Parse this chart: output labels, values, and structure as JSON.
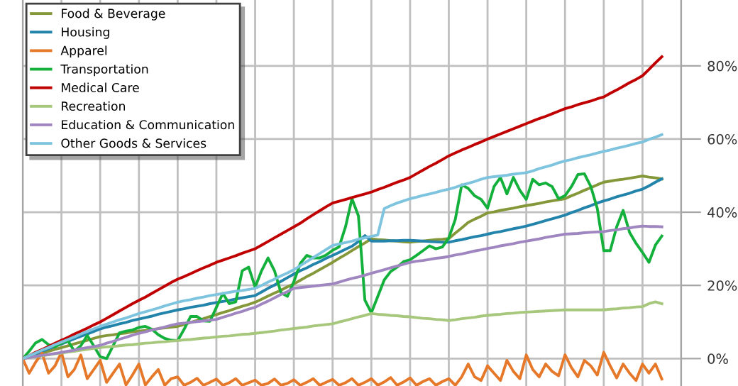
{
  "chart_data": {
    "type": "line",
    "categories": [
      null,
      null,
      null,
      null,
      null,
      null,
      null,
      null,
      null,
      null,
      null,
      null,
      null,
      null,
      null,
      null,
      null,
      null,
      null,
      null,
      null,
      null,
      null,
      null,
      null,
      null,
      null,
      null,
      null,
      null,
      null,
      null,
      null,
      null,
      null,
      null,
      null,
      null,
      null,
      null,
      null,
      null,
      null,
      null,
      null,
      null,
      null,
      null,
      null,
      null,
      null,
      null,
      null,
      null,
      null,
      null,
      null,
      null,
      null,
      null,
      null,
      null,
      null,
      null,
      null,
      null,
      null,
      null,
      null,
      null,
      null,
      null,
      null,
      null,
      null,
      null,
      null,
      null,
      null,
      null,
      null,
      null,
      null,
      null,
      null,
      null,
      null,
      null,
      null,
      null,
      null,
      null,
      null,
      null,
      null,
      null,
      null,
      null,
      null,
      null,
      null,
      null,
      null
    ],
    "series": [
      {
        "name": "Food & Beverage",
        "color": "#84983a",
        "values": [
          0,
          0.5,
          1,
          1.5,
          2,
          2.5,
          3,
          3.5,
          4,
          4.5,
          5,
          5.5,
          6,
          6.3,
          6.5,
          6.8,
          7,
          7.3,
          7.5,
          7.7,
          7.9,
          8.2,
          8.4,
          8.6,
          8.8,
          9.3,
          9.9,
          10.4,
          10.9,
          11.5,
          12,
          12.6,
          13.1,
          13.7,
          14.3,
          14.8,
          15.4,
          16.2,
          17.1,
          17.9,
          18.7,
          19.6,
          20.4,
          21.4,
          22.4,
          23.3,
          24.3,
          25.3,
          26.3,
          27.4,
          28.4,
          29.5,
          30.6,
          31.6,
          32.7,
          32.5,
          32.4,
          32.2,
          32.1,
          31.9,
          31.8,
          32,
          32.1,
          32.3,
          32.5,
          32.6,
          32.8,
          34.3,
          35.7,
          37.2,
          38.1,
          38.9,
          39.8,
          40.1,
          40.5,
          40.8,
          41.1,
          41.5,
          41.8,
          42.1,
          42.4,
          42.8,
          43.1,
          43.4,
          43.7,
          44.5,
          45.2,
          46,
          46.7,
          47.5,
          48.2,
          48.5,
          48.8,
          49,
          49.3,
          49.6,
          49.9,
          49.6,
          49.4,
          49.1,
          null,
          null,
          null
        ]
      },
      {
        "name": "Housing",
        "color": "#2283ab",
        "values": [
          0,
          0.7,
          1.3,
          2,
          2.7,
          3.3,
          4,
          4.7,
          5.4,
          6.1,
          6.7,
          7.4,
          8.1,
          8.6,
          9,
          9.5,
          9.9,
          10.4,
          10.8,
          11.2,
          11.6,
          12.1,
          12.5,
          12.9,
          13.3,
          13.6,
          14,
          14.3,
          14.6,
          15,
          15.3,
          15.6,
          15.9,
          16.3,
          16.6,
          16.9,
          17.2,
          18.2,
          19.2,
          20.1,
          21.1,
          22.1,
          23.1,
          24,
          24.8,
          25.7,
          26.5,
          27.4,
          28.2,
          29,
          29.9,
          30.7,
          32,
          33.6,
          32.1,
          32.1,
          32.1,
          32.2,
          32.2,
          32.3,
          32.3,
          32.2,
          32.1,
          32,
          31.9,
          31.8,
          31.8,
          32.2,
          32.5,
          32.9,
          33.3,
          33.6,
          34,
          34.4,
          34.7,
          35.1,
          35.5,
          35.8,
          36.2,
          36.7,
          37.2,
          37.7,
          38.2,
          38.7,
          39.2,
          39.9,
          40.5,
          41.2,
          41.8,
          42.5,
          43.1,
          43.6,
          44.2,
          44.7,
          45.2,
          45.8,
          46.3,
          47.2,
          48.2,
          49.1,
          null,
          null,
          null
        ]
      },
      {
        "name": "Apparel",
        "color": "#e6782a",
        "values": [
          0,
          -4,
          -1,
          1.5,
          -4,
          -2,
          1.7,
          -5,
          -3,
          1,
          -5.5,
          -3,
          -0.5,
          -6.5,
          -4,
          -1.5,
          -7.2,
          -4.5,
          -1.5,
          -7.2,
          -5,
          -3,
          -7.3,
          -5.5,
          -5,
          -7.3,
          -6.5,
          -5.4,
          -7.3,
          -6.5,
          -5.6,
          -7.3,
          -6.6,
          -5.5,
          -7.3,
          -6.6,
          -5.9,
          -7.3,
          -6.8,
          -5.6,
          -7.3,
          -6.8,
          -5.8,
          -7.3,
          -6.5,
          -5.5,
          -7.3,
          -6.5,
          -5.7,
          -7.3,
          -6.6,
          -5.5,
          -7.3,
          -6.5,
          -5.5,
          -7.3,
          -6.4,
          -5.2,
          -7.3,
          -6.4,
          -5.3,
          -7.3,
          -6.3,
          -5.5,
          -7.3,
          -6.3,
          -5.5,
          -7.3,
          -5,
          -1.5,
          -5,
          -6,
          -2,
          -4,
          -6,
          -0.5,
          -3.5,
          -5.5,
          1,
          -3,
          -5,
          -1.5,
          -3.5,
          -4.7,
          1,
          -2.5,
          -5,
          -0.5,
          -2,
          -4.5,
          1.7,
          -2,
          -5.3,
          -1.5,
          -4,
          -6,
          -1.5,
          -4,
          -1.5,
          -5.6,
          null,
          null,
          null
        ]
      },
      {
        "name": "Transportation",
        "color": "#14b03c",
        "values": [
          0,
          2,
          4.3,
          5.2,
          3.8,
          3.2,
          4.2,
          4.9,
          2,
          3.5,
          6.3,
          3.5,
          0.5,
          0,
          3.5,
          7,
          7.5,
          7.8,
          8.5,
          8.8,
          8,
          6.5,
          5.5,
          5,
          4.9,
          8,
          11.5,
          11.5,
          10.3,
          10.2,
          14,
          17.8,
          15,
          15.5,
          24,
          25,
          19.5,
          24,
          27.5,
          24,
          18,
          17,
          21,
          26,
          28.2,
          27.5,
          27.5,
          28.3,
          29.6,
          30.5,
          36,
          43.7,
          39,
          16,
          12.5,
          17,
          21.5,
          23.8,
          25,
          26.5,
          27,
          28.2,
          29.5,
          30.8,
          30,
          30.5,
          33,
          38,
          47.5,
          46.5,
          44.5,
          43.5,
          41.1,
          47,
          49.5,
          45,
          49.5,
          46,
          43.5,
          49,
          47.5,
          48,
          47,
          43.7,
          44.5,
          47,
          50.3,
          50.5,
          47,
          41,
          29.5,
          29.5,
          36,
          40.5,
          34.5,
          31.5,
          29,
          26.3,
          31,
          33.5,
          null,
          null,
          null
        ]
      },
      {
        "name": "Medical Care",
        "color": "#c00000",
        "values": [
          0,
          0.8,
          1.7,
          2.5,
          3.3,
          4.2,
          5,
          5.8,
          6.7,
          7.5,
          8.3,
          9.2,
          10,
          11,
          12,
          13,
          14,
          15,
          15.9,
          16.8,
          17.8,
          18.8,
          19.8,
          20.8,
          21.7,
          22.4,
          23.2,
          24,
          24.8,
          25.5,
          26.3,
          26.9,
          27.5,
          28.1,
          28.8,
          29.4,
          30,
          31,
          32,
          33,
          34,
          35,
          36,
          37,
          38.2,
          39.3,
          40.4,
          41.5,
          42.5,
          43,
          43.5,
          44,
          44.5,
          45,
          45.5,
          46.2,
          46.8,
          47.5,
          48.2,
          48.8,
          49.5,
          50.5,
          51.5,
          52.5,
          53.4,
          54.4,
          55.4,
          56.2,
          57,
          57.7,
          58.5,
          59.2,
          60,
          60.7,
          61.4,
          62.1,
          62.8,
          63.5,
          64.2,
          64.9,
          65.6,
          66.2,
          66.9,
          67.6,
          68.3,
          68.8,
          69.4,
          69.9,
          70.4,
          71,
          71.5,
          72.5,
          73.4,
          74.4,
          75.4,
          76.3,
          77.3,
          79,
          80.8,
          82.5,
          null,
          null,
          null
        ]
      },
      {
        "name": "Recreation",
        "color": "#a6c77c",
        "values": [
          0,
          0.3,
          0.5,
          0.8,
          1,
          1.3,
          1.5,
          1.8,
          2,
          2.3,
          2.5,
          2.8,
          3,
          3.2,
          3.3,
          3.5,
          3.7,
          3.8,
          4,
          4.2,
          4.3,
          4.5,
          4.6,
          4.8,
          4.9,
          5.1,
          5.2,
          5.4,
          5.6,
          5.7,
          5.9,
          6.1,
          6.2,
          6.4,
          6.6,
          6.7,
          6.9,
          7.1,
          7.3,
          7.5,
          7.8,
          8,
          8.2,
          8.4,
          8.6,
          8.9,
          9.1,
          9.3,
          9.5,
          10,
          10.4,
          10.9,
          11.4,
          11.8,
          12.3,
          12.1,
          12,
          11.8,
          11.7,
          11.5,
          11.4,
          11.2,
          11,
          10.9,
          10.7,
          10.6,
          10.4,
          10.6,
          10.9,
          11.1,
          11.3,
          11.6,
          11.8,
          12,
          12.1,
          12.3,
          12.4,
          12.6,
          12.7,
          12.8,
          12.9,
          13,
          13.1,
          13.2,
          13.3,
          13.3,
          13.3,
          13.3,
          13.3,
          13.3,
          13.3,
          13.5,
          13.6,
          13.8,
          13.9,
          14.1,
          14.2,
          15,
          15.5,
          15,
          null,
          null,
          null
        ]
      },
      {
        "name": "Education & Communication",
        "color": "#9f86c0",
        "values": [
          0,
          0.3,
          0.6,
          0.9,
          1.1,
          1.4,
          1.7,
          2,
          2.3,
          2.7,
          3,
          3.3,
          3.6,
          4.2,
          4.7,
          5.3,
          5.8,
          6.4,
          6.9,
          7.3,
          7.8,
          8.2,
          8.6,
          9.1,
          9.5,
          9.7,
          9.9,
          10.1,
          10.3,
          10.5,
          10.7,
          11.3,
          11.8,
          12.4,
          12.9,
          13.5,
          14,
          14.9,
          15.7,
          16.6,
          17.5,
          18.3,
          19.2,
          19.4,
          19.6,
          19.8,
          20,
          20.2,
          20.4,
          20.9,
          21.4,
          21.9,
          22.3,
          22.8,
          23.3,
          23.8,
          24.3,
          24.8,
          25.3,
          25.8,
          26.3,
          26.6,
          26.8,
          27.1,
          27.4,
          27.6,
          27.9,
          28.3,
          28.6,
          29,
          29.4,
          29.7,
          30.1,
          30.4,
          30.8,
          31.1,
          31.4,
          31.8,
          32.1,
          32.4,
          32.7,
          33.1,
          33.4,
          33.7,
          34,
          34.1,
          34.2,
          34.4,
          34.5,
          34.6,
          34.7,
          35,
          35.2,
          35.5,
          35.7,
          36,
          36.2,
          36.1,
          36.1,
          36,
          null,
          null,
          null
        ]
      },
      {
        "name": "Other Goods & Services",
        "color": "#7ec4de",
        "values": [
          0,
          0.8,
          1.5,
          2.3,
          3,
          3.8,
          4.5,
          5.2,
          5.9,
          6.7,
          7.4,
          8.1,
          8.8,
          9.4,
          10,
          10.6,
          11.1,
          11.7,
          12.3,
          12.8,
          13.3,
          13.8,
          14.4,
          14.9,
          15.4,
          15.8,
          16.1,
          16.5,
          16.8,
          17.2,
          17.5,
          17.8,
          18.1,
          18.4,
          18.6,
          18.9,
          19.2,
          20,
          20.9,
          21.7,
          22.6,
          23.4,
          24.3,
          25.4,
          26.5,
          27.6,
          28.7,
          29.8,
          30.9,
          31.3,
          31.7,
          32.1,
          32.6,
          33,
          33.4,
          33.8,
          41,
          41.8,
          42.5,
          43.1,
          43.7,
          44.1,
          44.6,
          45,
          45.4,
          45.9,
          46.3,
          46.8,
          47.4,
          47.9,
          48.4,
          49,
          49.5,
          49.7,
          49.9,
          50.1,
          50.4,
          50.6,
          50.8,
          51.3,
          51.9,
          52.4,
          52.9,
          53.5,
          54,
          54.4,
          54.9,
          55.3,
          55.7,
          56.2,
          56.6,
          57,
          57.5,
          57.9,
          58.3,
          58.8,
          59.2,
          59.9,
          60.5,
          61.2,
          null,
          null,
          null
        ]
      }
    ],
    "ylim": [
      -7.5,
      98
    ],
    "yticks": [
      {
        "value": 0,
        "label": "0%"
      },
      {
        "value": 20,
        "label": "20%"
      },
      {
        "value": 40,
        "label": "40%"
      },
      {
        "value": 60,
        "label": "60%"
      },
      {
        "value": 80,
        "label": "80%"
      }
    ],
    "grid": true,
    "legend": "top left",
    "tick_labels": "y",
    "marker": "none",
    "line_style": "solid"
  }
}
